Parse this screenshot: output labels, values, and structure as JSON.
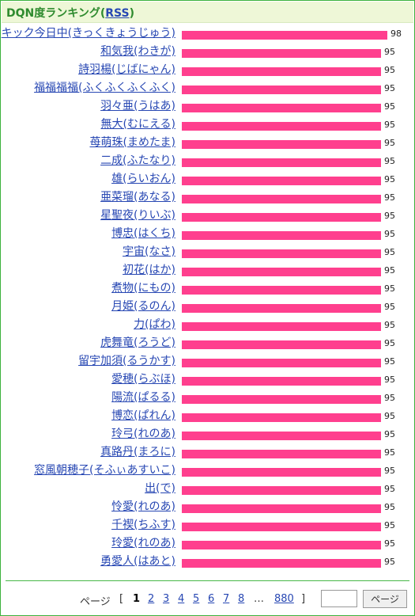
{
  "header": {
    "title": "DQN度ランキング",
    "paren_open": "(",
    "rss_label": "RSS",
    "paren_close": ")"
  },
  "chart_data": {
    "type": "bar",
    "orientation": "horizontal",
    "bar_color": "#ff3f8e",
    "xlim": [
      0,
      100
    ],
    "categories": [
      "キック今日中(きっくきょうじゅう)",
      "和気我(わきが)",
      "詩羽楊(じばにゃん)",
      "福福福福(ふくふくふくふく)",
      "羽々亜(うはあ)",
      "無大(むにえる)",
      "苺萌珠(まめたま)",
      "二成(ふたなり)",
      "雄(らいおん)",
      "亜菜瑠(あなる)",
      "星聖夜(りいぶ)",
      "博忠(はくち)",
      "宇宙(なさ)",
      "初花(はか)",
      "煮物(にもの)",
      "月姫(るのん)",
      "力(ぱわ)",
      "虎舞竜(ろうど)",
      "留宇加須(るうかす)",
      "愛穂(らぶほ)",
      "陽流(ぱるる)",
      "博恋(ぱれん)",
      "玲弓(れのあ)",
      "真路丹(まろに)",
      "窓風朝穂子(そふぃあすいこ)",
      "出(で)",
      "怜愛(れのあ)",
      "千禊(ちふす)",
      "玲愛(れのあ)",
      "勇愛人(はあと)"
    ],
    "values": [
      98,
      95,
      95,
      95,
      95,
      95,
      95,
      95,
      95,
      95,
      95,
      95,
      95,
      95,
      95,
      95,
      95,
      95,
      95,
      95,
      95,
      95,
      95,
      95,
      95,
      95,
      95,
      95,
      95,
      95
    ]
  },
  "pager": {
    "label": "ページ",
    "bracket_open": "[",
    "pages": [
      "1",
      "2",
      "3",
      "4",
      "5",
      "6",
      "7",
      "8"
    ],
    "current": "1",
    "ellipsis": "…",
    "last": "880",
    "bracket_close": "]",
    "input_value": "",
    "go_button": "ページ"
  }
}
